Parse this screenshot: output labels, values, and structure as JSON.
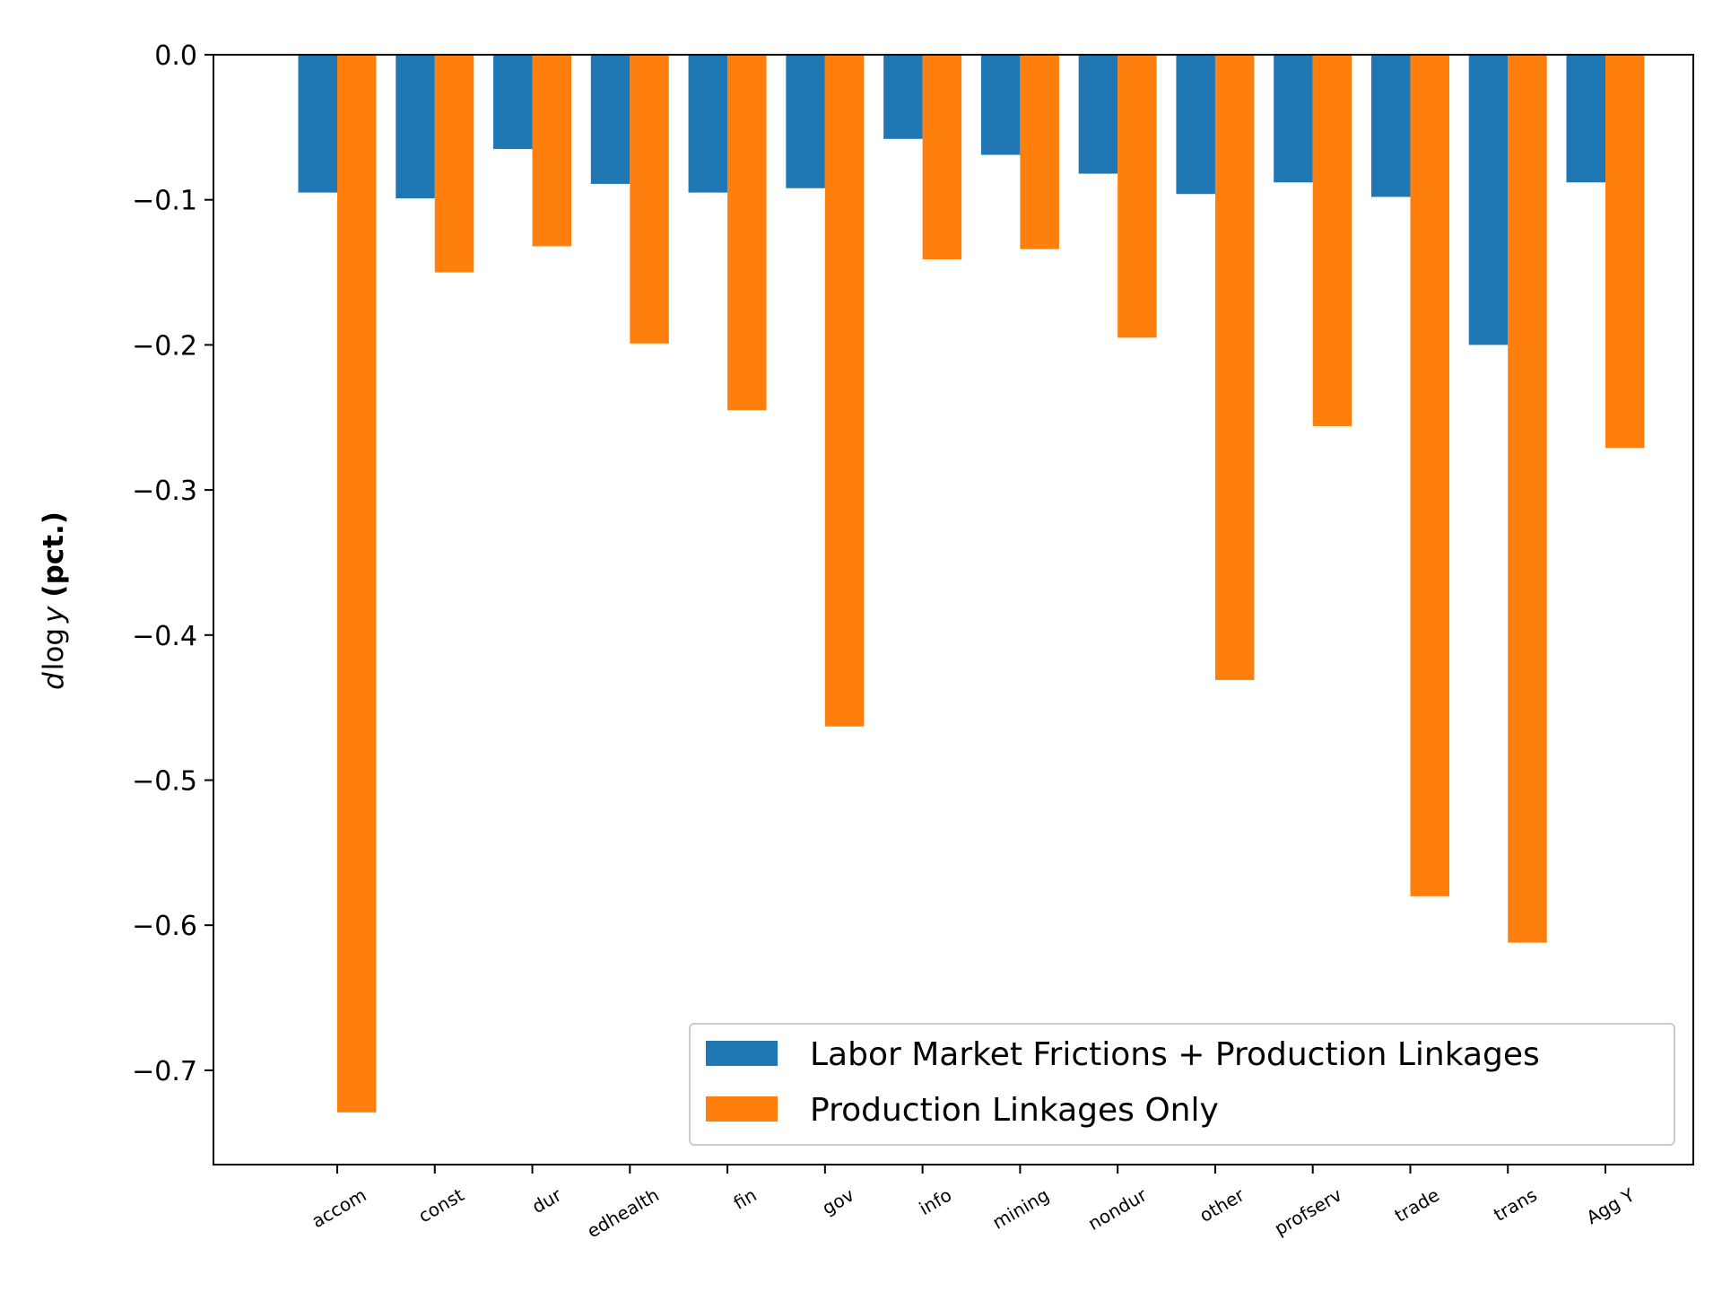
{
  "chart_data": {
    "type": "bar",
    "title": "",
    "xlabel": "",
    "ylabel": {
      "prefix": "d",
      "log": "log",
      "var": "y",
      "unit": "(pct.)"
    },
    "categories": [
      "accom",
      "const",
      "dur",
      "edhealth",
      "fin",
      "gov",
      "info",
      "mining",
      "nondur",
      "other",
      "profserv",
      "trade",
      "trans",
      "Agg Y"
    ],
    "series": [
      {
        "name": "Labor Market Frictions + Production Linkages",
        "color": "#1f77b4",
        "values": [
          -0.095,
          -0.099,
          -0.065,
          -0.089,
          -0.095,
          -0.092,
          -0.058,
          -0.069,
          -0.082,
          -0.096,
          -0.088,
          -0.098,
          -0.2,
          -0.088
        ]
      },
      {
        "name": "Production Linkages Only",
        "color": "#ff7f0e",
        "values": [
          -0.729,
          -0.15,
          -0.132,
          -0.199,
          -0.245,
          -0.463,
          -0.141,
          -0.134,
          -0.195,
          -0.431,
          -0.256,
          -0.58,
          -0.612,
          -0.271
        ]
      }
    ],
    "ylim": [
      -0.765,
      0.0
    ],
    "yticks": [
      0.0,
      -0.1,
      -0.2,
      -0.3,
      -0.4,
      -0.5,
      -0.6,
      -0.7
    ],
    "ytick_labels": [
      "0.0",
      "−0.1",
      "−0.2",
      "−0.3",
      "−0.4",
      "−0.5",
      "−0.6",
      "−0.7"
    ],
    "grid": false,
    "legend_position": "lower-right"
  }
}
